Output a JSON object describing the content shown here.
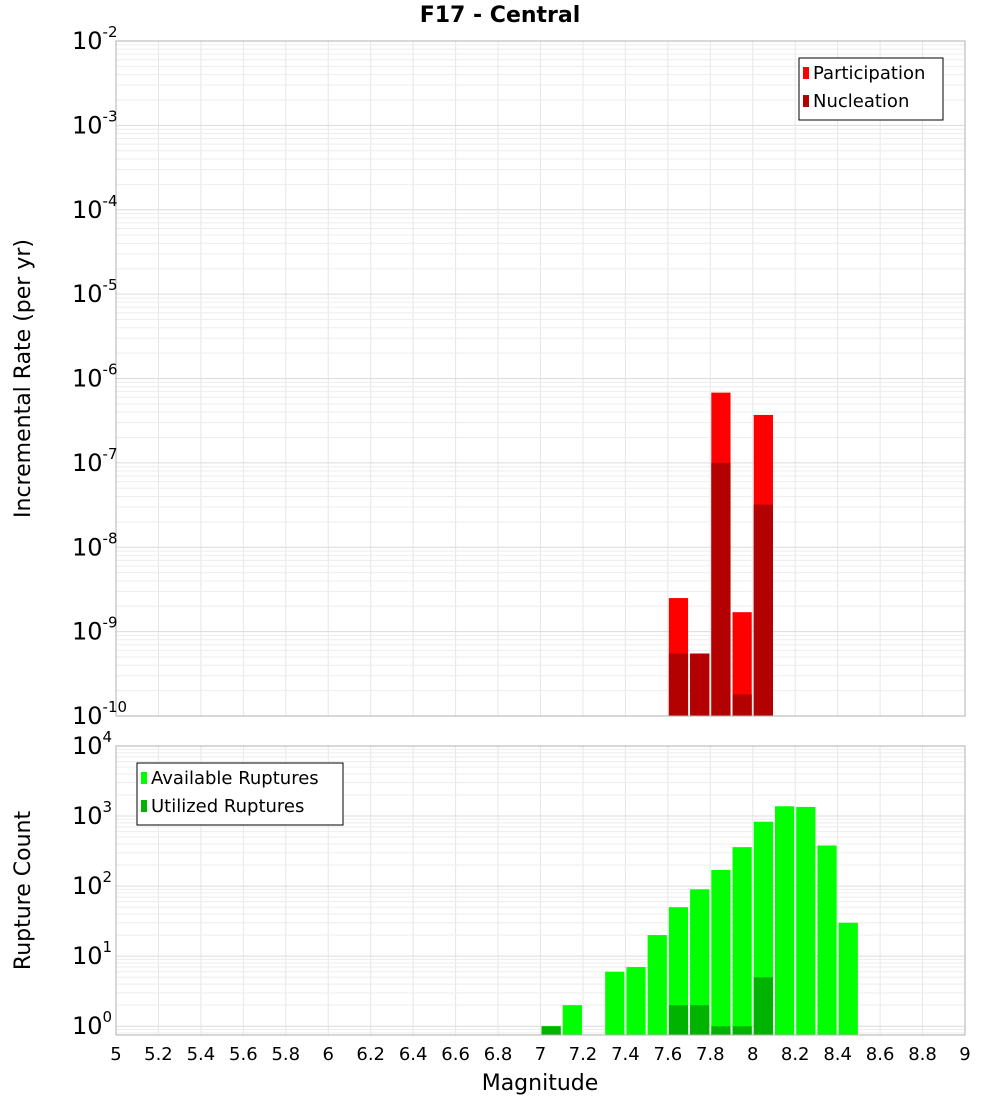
{
  "chart_data": {
    "title": "F17 - Central",
    "xlabel": "Magnitude",
    "x_ticks": [
      "5",
      "5.2",
      "5.4",
      "5.6",
      "5.8",
      "6",
      "6.2",
      "6.4",
      "6.6",
      "6.8",
      "7",
      "7.2",
      "7.4",
      "7.6",
      "7.8",
      "8",
      "8.2",
      "8.4",
      "8.6",
      "8.8",
      "9"
    ],
    "xlim": [
      5,
      9
    ],
    "bin_width": 0.1,
    "panels": [
      {
        "type": "bar",
        "scale": "log",
        "ylabel": "Incremental Rate (per yr)",
        "ylim": [
          1e-10,
          0.01
        ],
        "y_exponents": [
          "-10",
          "-9",
          "-8",
          "-7",
          "-6",
          "-5",
          "-4",
          "-3",
          "-2"
        ],
        "legend_position": "top-right",
        "grid": true,
        "series": [
          {
            "name": "Participation",
            "color": "#ff0000",
            "x": [
              7.65,
              7.75,
              7.85,
              7.95,
              8.05
            ],
            "values": [
              2.5e-09,
              5.5e-10,
              6.8e-07,
              1.7e-09,
              3.7e-07
            ]
          },
          {
            "name": "Nucleation",
            "color": "#b30000",
            "x": [
              7.65,
              7.75,
              7.85,
              7.95,
              8.05
            ],
            "values": [
              5.5e-10,
              5.5e-10,
              1e-07,
              1.8e-10,
              3.2e-08
            ]
          }
        ]
      },
      {
        "type": "bar",
        "scale": "log",
        "ylabel": "Rupture Count",
        "ylim": [
          0.75,
          10000
        ],
        "y_exponents": [
          "0",
          "1",
          "2",
          "3",
          "4"
        ],
        "legend_position": "top-left",
        "grid": true,
        "series": [
          {
            "name": "Available Ruptures",
            "color": "#00ff00",
            "x": [
              7.05,
              7.15,
              7.35,
              7.45,
              7.55,
              7.65,
              7.75,
              7.85,
              7.95,
              8.05,
              8.15,
              8.25,
              8.35,
              8.45
            ],
            "values": [
              1,
              2,
              6,
              7,
              20,
              50,
              90,
              170,
              360,
              830,
              1380,
              1350,
              380,
              30
            ]
          },
          {
            "name": "Utilized Ruptures",
            "color": "#00b300",
            "x": [
              7.05,
              7.65,
              7.75,
              7.85,
              7.95,
              8.05
            ],
            "values": [
              1,
              2,
              2,
              1,
              1,
              5
            ]
          }
        ]
      }
    ]
  }
}
